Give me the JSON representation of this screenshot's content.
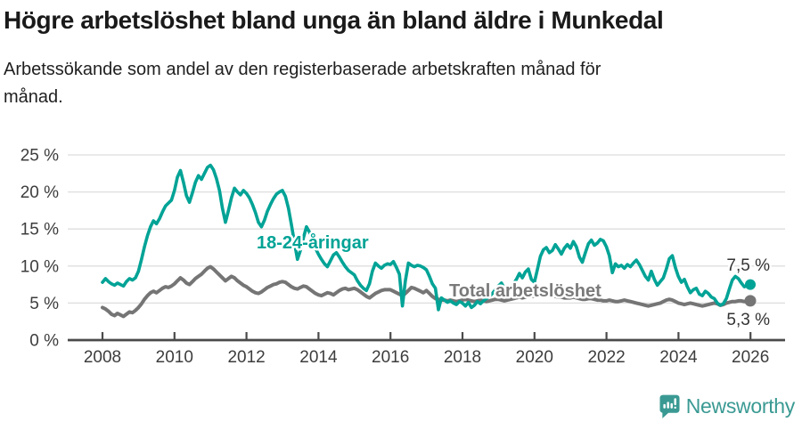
{
  "header": {
    "title": "Högre arbetslöshet bland unga än bland äldre i Munkedal",
    "subtitle_lines": [
      "Arbetssökande som andel av den registerbaserade arbetskraften månad för",
      "månad."
    ]
  },
  "chart_data": {
    "type": "line",
    "title": "Högre arbetslöshet bland unga än bland äldre i Munkedal",
    "subtitle": "Arbetssökande som andel av den registerbaserade arbetskraften månad för månad.",
    "x_start": "2008-01",
    "x_end": "2026-01",
    "frequency": "monthly",
    "ylim": [
      0,
      25
    ],
    "y_unit": "%",
    "grid": "horizontal",
    "legend_position": "inline-labels",
    "x_tick_labels": [
      "2008",
      "2010",
      "2012",
      "2014",
      "2016",
      "2018",
      "2020",
      "2022",
      "2024",
      "2026"
    ],
    "y_tick_labels": [
      "25 %",
      "20 %",
      "15 %",
      "10 %",
      "5 %",
      "0 %"
    ],
    "series": [
      {
        "name": "18-24-åringar",
        "color": "#00a396",
        "label_color": "#00a396",
        "end_label": "7,5 %",
        "values": [
          7.8,
          8.3,
          7.9,
          7.6,
          7.4,
          7.7,
          7.5,
          7.3,
          7.9,
          8.3,
          8.1,
          8.4,
          9.3,
          10.9,
          12.6,
          14.1,
          15.3,
          16.1,
          15.7,
          16.4,
          17.3,
          18.1,
          18.5,
          18.9,
          20.2,
          22.0,
          22.9,
          21.3,
          19.5,
          18.6,
          19.9,
          21.3,
          22.2,
          21.7,
          22.5,
          23.3,
          23.6,
          23.0,
          21.8,
          20.2,
          17.8,
          15.9,
          17.5,
          19.2,
          20.5,
          20.0,
          19.6,
          20.2,
          19.8,
          19.2,
          18.3,
          17.2,
          15.9,
          15.3,
          16.2,
          17.4,
          18.3,
          19.1,
          19.7,
          20.0,
          20.2,
          19.4,
          17.8,
          15.6,
          13.2,
          10.9,
          12.1,
          13.8,
          15.3,
          14.6,
          13.5,
          12.4,
          11.6,
          10.9,
          10.3,
          9.9,
          10.7,
          11.5,
          11.8,
          11.2,
          10.5,
          9.9,
          9.4,
          9.1,
          8.8,
          8.0,
          7.4,
          7.0,
          6.7,
          7.6,
          9.3,
          10.4,
          10.0,
          9.7,
          10.1,
          10.3,
          10.2,
          10.6,
          9.8,
          8.9,
          4.6,
          8.0,
          10.4,
          10.1,
          9.9,
          10.1,
          10.0,
          9.8,
          9.5,
          8.6,
          7.6,
          7.0,
          4.1,
          5.7,
          5.4,
          5.1,
          5.3,
          5.0,
          4.8,
          5.2,
          5.0,
          4.6,
          5.1,
          4.4,
          4.7,
          5.2,
          4.9,
          5.3,
          5.6,
          5.9,
          6.3,
          6.8,
          7.3,
          7.7,
          7.0,
          6.5,
          7.0,
          7.6,
          8.2,
          9.0,
          8.4,
          9.2,
          9.6,
          8.2,
          7.8,
          9.5,
          11.3,
          12.2,
          12.5,
          11.8,
          12.1,
          12.9,
          12.3,
          11.6,
          12.4,
          12.9,
          12.4,
          13.3,
          12.6,
          11.2,
          10.5,
          11.8,
          13.0,
          13.5,
          12.8,
          13.1,
          13.6,
          13.4,
          12.6,
          11.4,
          9.1,
          10.3,
          9.9,
          10.1,
          9.7,
          10.2,
          9.9,
          10.4,
          10.8,
          10.2,
          9.4,
          8.6,
          8.1,
          9.3,
          8.2,
          7.4,
          7.9,
          8.4,
          9.6,
          11.0,
          11.4,
          9.8,
          8.6,
          7.8,
          8.2,
          7.2,
          6.4,
          6.8,
          7.0,
          6.2,
          6.0,
          6.6,
          6.3,
          5.8,
          5.6,
          5.0,
          4.7,
          4.9,
          5.6,
          6.9,
          8.1,
          8.6,
          8.3,
          7.7,
          7.2,
          7.4,
          7.5
        ]
      },
      {
        "name": "Total arbetslöshet",
        "color": "#757575",
        "label_color": "#7a7a7a",
        "end_label": "5,3 %",
        "values": [
          4.4,
          4.2,
          3.9,
          3.5,
          3.3,
          3.6,
          3.4,
          3.2,
          3.5,
          3.8,
          3.7,
          4.0,
          4.4,
          4.9,
          5.5,
          6.0,
          6.4,
          6.6,
          6.4,
          6.7,
          7.0,
          7.2,
          7.1,
          7.3,
          7.6,
          8.0,
          8.4,
          8.1,
          7.7,
          7.5,
          7.9,
          8.3,
          8.6,
          8.9,
          9.3,
          9.7,
          9.9,
          9.6,
          9.2,
          8.8,
          8.4,
          8.0,
          8.3,
          8.6,
          8.4,
          8.0,
          7.7,
          7.4,
          7.2,
          6.9,
          6.6,
          6.4,
          6.3,
          6.5,
          6.8,
          7.1,
          7.3,
          7.5,
          7.6,
          7.8,
          7.9,
          7.8,
          7.5,
          7.2,
          7.0,
          6.9,
          7.1,
          7.3,
          7.2,
          6.9,
          6.6,
          6.3,
          6.1,
          6.0,
          6.2,
          6.4,
          6.3,
          6.1,
          6.4,
          6.7,
          6.9,
          7.0,
          6.8,
          6.9,
          7.0,
          6.8,
          6.5,
          6.2,
          5.9,
          5.7,
          6.0,
          6.3,
          6.5,
          6.7,
          6.8,
          6.8,
          6.8,
          6.6,
          6.4,
          6.2,
          6.0,
          6.3,
          6.7,
          7.1,
          7.0,
          6.8,
          6.6,
          6.4,
          6.7,
          6.3,
          5.9,
          5.6,
          5.5,
          5.4,
          5.4,
          5.3,
          5.4,
          5.3,
          5.2,
          5.3,
          5.4,
          5.5,
          5.4,
          5.3,
          5.2,
          5.3,
          5.4,
          5.3,
          5.2,
          5.3,
          5.4,
          5.5,
          5.5,
          5.4,
          5.3,
          5.4,
          5.5,
          5.6,
          5.7,
          5.8,
          5.7,
          5.8,
          5.9,
          6.0,
          5.9,
          6.0,
          6.1,
          6.2,
          6.2,
          6.1,
          6.0,
          5.9,
          5.8,
          5.8,
          5.7,
          5.7,
          5.7,
          5.8,
          5.7,
          5.6,
          5.5,
          5.5,
          5.6,
          5.6,
          5.5,
          5.4,
          5.4,
          5.3,
          5.3,
          5.4,
          5.3,
          5.2,
          5.2,
          5.3,
          5.4,
          5.3,
          5.2,
          5.1,
          5.0,
          4.9,
          4.8,
          4.7,
          4.6,
          4.7,
          4.8,
          4.9,
          5.0,
          5.2,
          5.4,
          5.5,
          5.4,
          5.2,
          5.0,
          4.9,
          4.8,
          4.9,
          5.0,
          4.9,
          4.8,
          4.7,
          4.6,
          4.7,
          4.8,
          4.9,
          5.0,
          4.9,
          4.7,
          4.8,
          5.0,
          5.1,
          5.2,
          5.2,
          5.3,
          5.3,
          5.2,
          5.3,
          5.3
        ]
      }
    ]
  },
  "footer": {
    "brand": "Newsworthy",
    "brand_color": "#3a9a93"
  }
}
